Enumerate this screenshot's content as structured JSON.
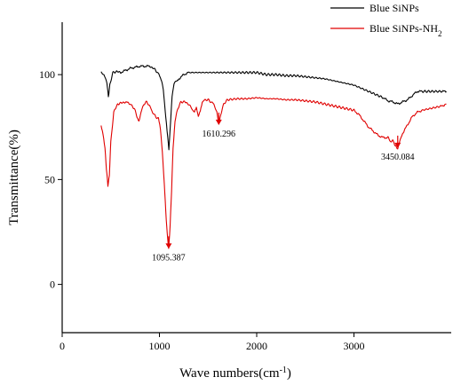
{
  "chart_data": {
    "type": "line",
    "title": "",
    "xlabel": "Wave numbers(cm",
    "xlabel_superscript": "-1",
    "xlabel_suffix": ")",
    "ylabel": "Transmittance(%)",
    "xlim": [
      0,
      4000
    ],
    "ylim": [
      -23,
      125
    ],
    "x_ticks": [
      0,
      1000,
      2000,
      3000
    ],
    "y_ticks": [
      0,
      50,
      100
    ],
    "grid": false,
    "legend_position": "top-right",
    "series": [
      {
        "name": "Blue SiNPs",
        "color": "#000000",
        "points": [
          [
            400,
            101
          ],
          [
            430,
            100
          ],
          [
            460,
            96
          ],
          [
            475,
            89.5
          ],
          [
            490,
            95
          ],
          [
            520,
            101
          ],
          [
            560,
            101.5
          ],
          [
            600,
            101
          ],
          [
            650,
            102
          ],
          [
            700,
            103
          ],
          [
            750,
            103.5
          ],
          [
            800,
            104
          ],
          [
            850,
            104
          ],
          [
            900,
            104
          ],
          [
            940,
            103
          ],
          [
            980,
            101
          ],
          [
            1010,
            99
          ],
          [
            1040,
            93
          ],
          [
            1065,
            80
          ],
          [
            1085,
            70
          ],
          [
            1097,
            64
          ],
          [
            1110,
            74
          ],
          [
            1130,
            90
          ],
          [
            1150,
            96
          ],
          [
            1180,
            97
          ],
          [
            1200,
            98
          ],
          [
            1250,
            100
          ],
          [
            1300,
            101
          ],
          [
            1400,
            101
          ],
          [
            1500,
            101
          ],
          [
            1600,
            101
          ],
          [
            1700,
            101
          ],
          [
            1800,
            101
          ],
          [
            1900,
            101
          ],
          [
            2000,
            101
          ],
          [
            2100,
            100
          ],
          [
            2200,
            100
          ],
          [
            2300,
            99.5
          ],
          [
            2400,
            99.5
          ],
          [
            2500,
            99
          ],
          [
            2600,
            98.5
          ],
          [
            2700,
            98
          ],
          [
            2800,
            97
          ],
          [
            2900,
            96
          ],
          [
            3000,
            95
          ],
          [
            3100,
            93
          ],
          [
            3200,
            91
          ],
          [
            3300,
            89
          ],
          [
            3350,
            87.5
          ],
          [
            3400,
            87
          ],
          [
            3450,
            86
          ],
          [
            3500,
            87
          ],
          [
            3550,
            88
          ],
          [
            3600,
            90
          ],
          [
            3650,
            92
          ],
          [
            3700,
            92
          ],
          [
            3800,
            92
          ],
          [
            3900,
            92
          ],
          [
            3950,
            92
          ]
        ]
      },
      {
        "name": "Blue SiNPs-NH",
        "name_subscript": "2",
        "color": "#e00000",
        "points": [
          [
            400,
            76
          ],
          [
            420,
            72
          ],
          [
            440,
            65
          ],
          [
            455,
            55
          ],
          [
            470,
            47
          ],
          [
            485,
            52
          ],
          [
            500,
            68
          ],
          [
            530,
            82
          ],
          [
            570,
            86
          ],
          [
            610,
            86.5
          ],
          [
            650,
            87
          ],
          [
            700,
            86
          ],
          [
            740,
            84
          ],
          [
            770,
            80
          ],
          [
            790,
            78
          ],
          [
            810,
            82
          ],
          [
            840,
            86
          ],
          [
            870,
            87
          ],
          [
            900,
            85
          ],
          [
            930,
            82
          ],
          [
            960,
            80
          ],
          [
            990,
            79
          ],
          [
            1010,
            74
          ],
          [
            1030,
            63
          ],
          [
            1050,
            48
          ],
          [
            1065,
            35
          ],
          [
            1080,
            24
          ],
          [
            1095,
            17
          ],
          [
            1110,
            28
          ],
          [
            1125,
            45
          ],
          [
            1140,
            65
          ],
          [
            1160,
            78
          ],
          [
            1190,
            84
          ],
          [
            1220,
            87
          ],
          [
            1260,
            87
          ],
          [
            1300,
            86
          ],
          [
            1330,
            84
          ],
          [
            1360,
            82
          ],
          [
            1380,
            84
          ],
          [
            1400,
            80
          ],
          [
            1420,
            83
          ],
          [
            1440,
            87
          ],
          [
            1470,
            88
          ],
          [
            1500,
            88
          ],
          [
            1530,
            87
          ],
          [
            1560,
            86
          ],
          [
            1590,
            82
          ],
          [
            1610,
            76
          ],
          [
            1630,
            81
          ],
          [
            1660,
            86
          ],
          [
            1700,
            88
          ],
          [
            1800,
            88.5
          ],
          [
            1900,
            88.5
          ],
          [
            2000,
            89
          ],
          [
            2100,
            88.5
          ],
          [
            2200,
            88.5
          ],
          [
            2300,
            88
          ],
          [
            2400,
            88
          ],
          [
            2500,
            87.5
          ],
          [
            2600,
            87
          ],
          [
            2700,
            86
          ],
          [
            2800,
            85
          ],
          [
            2900,
            84
          ],
          [
            3000,
            83
          ],
          [
            3050,
            81
          ],
          [
            3100,
            78
          ],
          [
            3150,
            75
          ],
          [
            3200,
            73
          ],
          [
            3250,
            71
          ],
          [
            3300,
            70
          ],
          [
            3350,
            70
          ],
          [
            3380,
            68
          ],
          [
            3400,
            69
          ],
          [
            3420,
            66
          ],
          [
            3450,
            65
          ],
          [
            3470,
            68
          ],
          [
            3500,
            72
          ],
          [
            3550,
            76
          ],
          [
            3600,
            80
          ],
          [
            3650,
            82
          ],
          [
            3700,
            83
          ],
          [
            3800,
            84
          ],
          [
            3900,
            85
          ],
          [
            3950,
            86
          ]
        ]
      }
    ],
    "annotations": [
      {
        "label": "1095.387",
        "x": 1095,
        "y": 17,
        "color": "#e00000"
      },
      {
        "label": "1610.296",
        "x": 1610,
        "y": 76,
        "color": "#e00000"
      },
      {
        "label": "3450.084",
        "x": 3450,
        "y": 65,
        "color": "#e00000"
      }
    ]
  }
}
